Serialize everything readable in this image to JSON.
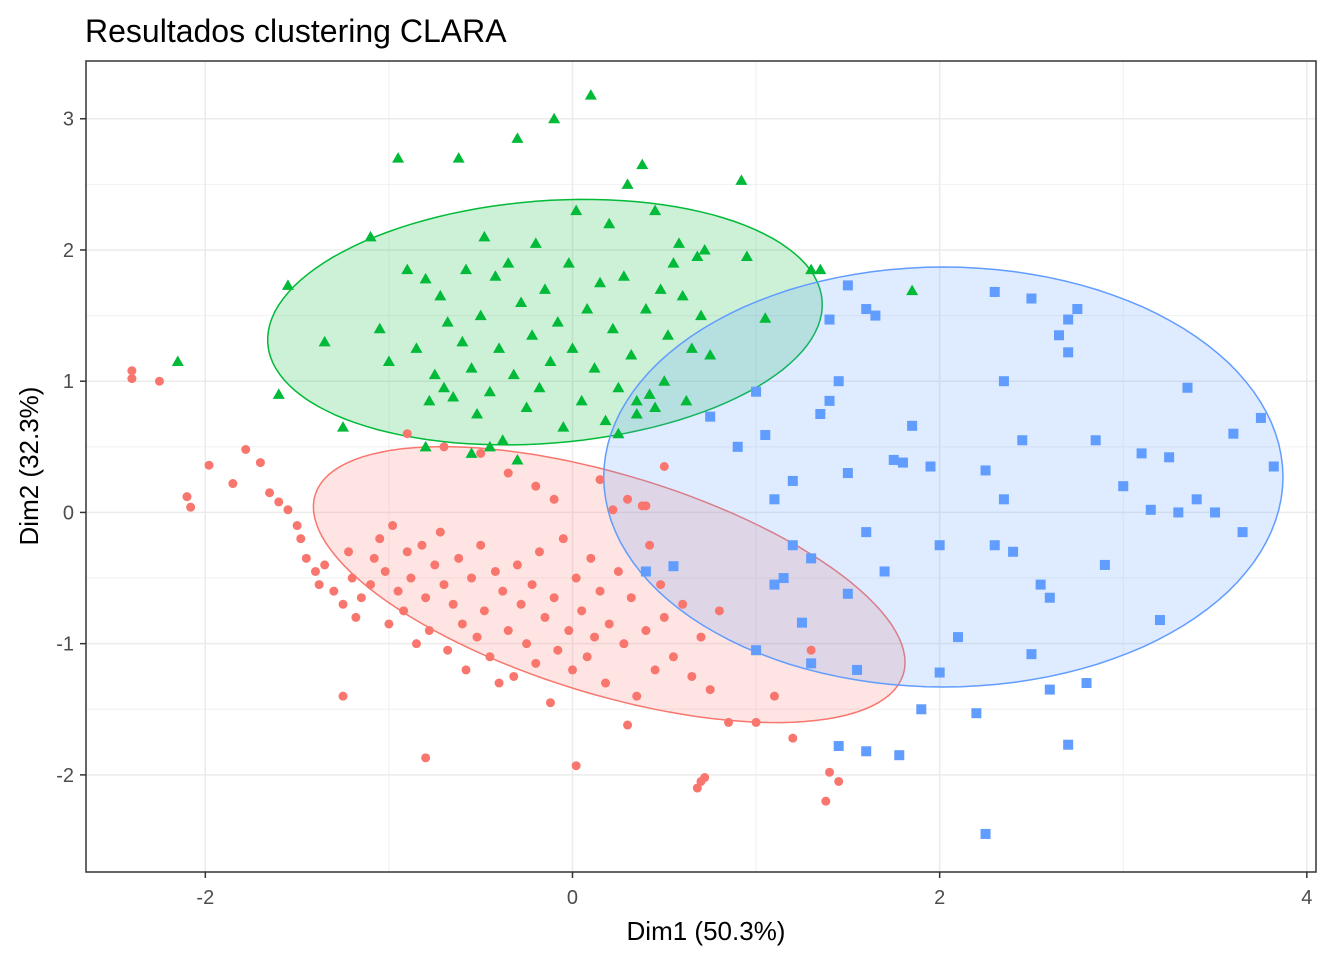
{
  "chart_data": {
    "type": "scatter",
    "title": "Resultados clustering CLARA",
    "xlabel": "Dim1 (50.3%)",
    "ylabel": "Dim2 (32.3%)",
    "xlim": [
      -2.65,
      4.05
    ],
    "ylim": [
      -2.74,
      3.44
    ],
    "x_ticks": [
      -2,
      0,
      2,
      4
    ],
    "y_ticks": [
      -2,
      -1,
      0,
      1,
      2,
      3
    ],
    "x_tick_labels": [
      "-2",
      "0",
      "2",
      "4"
    ],
    "y_tick_labels": [
      "-2",
      "-1",
      "0",
      "1",
      "2",
      "3"
    ],
    "grid": true,
    "legend": "none",
    "series": [
      {
        "color": "#F8766D",
        "fill": "#FDDCDA",
        "marker": "circle",
        "ellipse": {
          "cx": 0.2,
          "cy": -0.55,
          "rx": 1.75,
          "ry": 0.8,
          "angle_deg": -26
        },
        "points": [
          [
            -2.4,
            1.08
          ],
          [
            -2.4,
            1.02
          ],
          [
            -2.25,
            1.0
          ],
          [
            -2.1,
            0.12
          ],
          [
            -2.08,
            0.04
          ],
          [
            -1.98,
            0.36
          ],
          [
            -1.85,
            0.22
          ],
          [
            -1.78,
            0.48
          ],
          [
            -1.7,
            0.38
          ],
          [
            -1.65,
            0.15
          ],
          [
            -1.6,
            0.08
          ],
          [
            -1.55,
            0.02
          ],
          [
            -1.5,
            -0.1
          ],
          [
            -1.48,
            -0.2
          ],
          [
            -1.45,
            -0.35
          ],
          [
            -1.4,
            -0.45
          ],
          [
            -1.38,
            -0.55
          ],
          [
            -1.35,
            -0.4
          ],
          [
            -1.3,
            -0.6
          ],
          [
            -1.25,
            -0.7
          ],
          [
            -1.22,
            -0.3
          ],
          [
            -1.2,
            -0.5
          ],
          [
            -1.18,
            -0.8
          ],
          [
            -1.15,
            -0.65
          ],
          [
            -1.1,
            -0.55
          ],
          [
            -1.08,
            -0.35
          ],
          [
            -1.05,
            -0.2
          ],
          [
            -1.02,
            -0.45
          ],
          [
            -1.0,
            -0.85
          ],
          [
            -0.98,
            -0.1
          ],
          [
            -0.95,
            -0.6
          ],
          [
            -0.92,
            -0.75
          ],
          [
            -0.9,
            -0.3
          ],
          [
            -0.88,
            -0.5
          ],
          [
            -0.85,
            -1.0
          ],
          [
            -0.82,
            -0.25
          ],
          [
            -0.8,
            -0.65
          ],
          [
            -0.78,
            -0.9
          ],
          [
            -0.75,
            -0.4
          ],
          [
            -0.72,
            -0.15
          ],
          [
            -0.7,
            -0.55
          ],
          [
            -0.68,
            -1.05
          ],
          [
            -0.65,
            -0.7
          ],
          [
            -0.62,
            -0.35
          ],
          [
            -0.6,
            -0.85
          ],
          [
            -0.58,
            -1.2
          ],
          [
            -0.55,
            -0.5
          ],
          [
            -0.52,
            -0.95
          ],
          [
            -0.5,
            -0.25
          ],
          [
            -0.48,
            -0.75
          ],
          [
            -0.45,
            -1.1
          ],
          [
            -0.42,
            -0.45
          ],
          [
            -0.4,
            -1.3
          ],
          [
            -0.38,
            -0.6
          ],
          [
            -0.35,
            -0.9
          ],
          [
            -0.32,
            -1.25
          ],
          [
            -0.3,
            -0.4
          ],
          [
            -0.28,
            -0.7
          ],
          [
            -0.25,
            -1.0
          ],
          [
            -0.22,
            -0.55
          ],
          [
            -0.2,
            -1.15
          ],
          [
            -0.18,
            -0.3
          ],
          [
            -0.15,
            -0.8
          ],
          [
            -0.12,
            -1.45
          ],
          [
            -0.1,
            -0.65
          ],
          [
            -0.08,
            -1.05
          ],
          [
            -0.05,
            -0.2
          ],
          [
            -0.02,
            -0.9
          ],
          [
            0.0,
            -1.2
          ],
          [
            0.02,
            -0.5
          ],
          [
            0.05,
            -0.75
          ],
          [
            0.08,
            -1.1
          ],
          [
            0.1,
            -0.35
          ],
          [
            0.12,
            -0.95
          ],
          [
            0.15,
            -0.6
          ],
          [
            0.18,
            -1.3
          ],
          [
            0.2,
            -0.85
          ],
          [
            0.22,
            0.02
          ],
          [
            0.25,
            -0.45
          ],
          [
            0.28,
            -1.0
          ],
          [
            0.3,
            0.1
          ],
          [
            0.32,
            -0.65
          ],
          [
            0.35,
            -1.4
          ],
          [
            0.38,
            0.05
          ],
          [
            0.4,
            -0.9
          ],
          [
            0.42,
            -0.25
          ],
          [
            0.45,
            -1.2
          ],
          [
            0.48,
            -0.55
          ],
          [
            0.5,
            -0.8
          ],
          [
            0.55,
            -1.1
          ],
          [
            0.6,
            -0.7
          ],
          [
            0.65,
            -1.25
          ],
          [
            0.7,
            -0.95
          ],
          [
            0.75,
            -1.35
          ],
          [
            0.8,
            -0.75
          ],
          [
            0.85,
            -1.6
          ],
          [
            1.0,
            -1.6
          ],
          [
            1.1,
            -1.4
          ],
          [
            1.2,
            -1.72
          ],
          [
            1.3,
            -1.05
          ],
          [
            1.4,
            -1.98
          ],
          [
            1.45,
            -2.05
          ],
          [
            1.38,
            -2.2
          ],
          [
            -1.25,
            -1.4
          ],
          [
            -0.8,
            -1.87
          ],
          [
            0.02,
            -1.93
          ],
          [
            0.3,
            -1.62
          ],
          [
            0.7,
            -2.05
          ],
          [
            0.72,
            -2.02
          ],
          [
            0.68,
            -2.1
          ],
          [
            -0.9,
            0.6
          ],
          [
            -0.7,
            0.5
          ],
          [
            -0.5,
            0.45
          ],
          [
            -0.35,
            0.3
          ],
          [
            -0.2,
            0.2
          ],
          [
            -0.1,
            0.1
          ],
          [
            0.15,
            0.25
          ],
          [
            0.4,
            0.05
          ],
          [
            0.5,
            0.35
          ]
        ]
      },
      {
        "color": "#00BA38",
        "fill": "#D0F0D8",
        "marker": "triangle",
        "ellipse": {
          "cx": -0.15,
          "cy": 1.45,
          "rx": 1.52,
          "ry": 0.92,
          "angle_deg": 8
        },
        "points": [
          [
            -2.15,
            1.15
          ],
          [
            -1.6,
            0.9
          ],
          [
            -1.55,
            1.73
          ],
          [
            -1.35,
            1.3
          ],
          [
            -1.25,
            0.65
          ],
          [
            -1.1,
            2.1
          ],
          [
            -1.05,
            1.4
          ],
          [
            -1.0,
            1.15
          ],
          [
            -0.95,
            2.7
          ],
          [
            -0.9,
            1.85
          ],
          [
            -0.85,
            1.25
          ],
          [
            -0.8,
            1.78
          ],
          [
            -0.78,
            0.85
          ],
          [
            -0.75,
            1.05
          ],
          [
            -0.72,
            1.65
          ],
          [
            -0.7,
            0.95
          ],
          [
            -0.68,
            1.45
          ],
          [
            -0.65,
            0.88
          ],
          [
            -0.62,
            2.7
          ],
          [
            -0.6,
            1.3
          ],
          [
            -0.58,
            1.85
          ],
          [
            -0.55,
            1.1
          ],
          [
            -0.52,
            0.75
          ],
          [
            -0.5,
            1.5
          ],
          [
            -0.48,
            2.1
          ],
          [
            -0.45,
            0.92
          ],
          [
            -0.42,
            1.8
          ],
          [
            -0.4,
            1.25
          ],
          [
            -0.38,
            0.55
          ],
          [
            -0.35,
            1.9
          ],
          [
            -0.32,
            1.05
          ],
          [
            -0.3,
            2.85
          ],
          [
            -0.28,
            1.6
          ],
          [
            -0.25,
            0.8
          ],
          [
            -0.22,
            1.35
          ],
          [
            -0.2,
            2.05
          ],
          [
            -0.18,
            0.95
          ],
          [
            -0.15,
            1.7
          ],
          [
            -0.12,
            1.15
          ],
          [
            -0.1,
            3.0
          ],
          [
            -0.08,
            1.45
          ],
          [
            -0.05,
            0.65
          ],
          [
            -0.02,
            1.9
          ],
          [
            0.0,
            1.25
          ],
          [
            0.02,
            2.3
          ],
          [
            0.05,
            0.85
          ],
          [
            0.08,
            1.55
          ],
          [
            0.1,
            3.18
          ],
          [
            0.12,
            1.1
          ],
          [
            0.15,
            1.75
          ],
          [
            0.18,
            0.7
          ],
          [
            0.2,
            2.2
          ],
          [
            0.22,
            1.4
          ],
          [
            0.25,
            0.95
          ],
          [
            0.28,
            1.8
          ],
          [
            0.3,
            2.5
          ],
          [
            0.32,
            1.2
          ],
          [
            0.35,
            0.75
          ],
          [
            0.38,
            2.65
          ],
          [
            0.4,
            1.55
          ],
          [
            0.42,
            0.9
          ],
          [
            0.45,
            2.3
          ],
          [
            0.48,
            1.7
          ],
          [
            0.5,
            1.0
          ],
          [
            0.52,
            1.35
          ],
          [
            0.55,
            1.9
          ],
          [
            0.58,
            2.05
          ],
          [
            0.6,
            1.65
          ],
          [
            0.62,
            0.85
          ],
          [
            0.65,
            1.25
          ],
          [
            0.68,
            1.95
          ],
          [
            0.7,
            1.5
          ],
          [
            0.72,
            2.0
          ],
          [
            0.75,
            1.2
          ],
          [
            0.92,
            2.53
          ],
          [
            0.95,
            1.95
          ],
          [
            1.05,
            1.48
          ],
          [
            1.3,
            1.85
          ],
          [
            1.35,
            1.85
          ],
          [
            1.85,
            1.69
          ],
          [
            -0.55,
            0.45
          ],
          [
            -0.45,
            0.5
          ],
          [
            -0.3,
            0.4
          ],
          [
            -0.8,
            0.5
          ],
          [
            0.25,
            0.6
          ],
          [
            0.35,
            0.85
          ],
          [
            0.45,
            0.8
          ]
        ]
      },
      {
        "color": "#619CFF",
        "fill": "#DDE9FF",
        "marker": "square",
        "ellipse": {
          "cx": 2.02,
          "cy": 0.27,
          "rx": 1.85,
          "ry": 1.6,
          "angle_deg": 0
        },
        "points": [
          [
            0.4,
            -0.45
          ],
          [
            0.55,
            -0.41
          ],
          [
            0.75,
            0.73
          ],
          [
            0.9,
            0.5
          ],
          [
            1.0,
            0.92
          ],
          [
            1.05,
            0.59
          ],
          [
            1.1,
            -0.55
          ],
          [
            1.15,
            -0.5
          ],
          [
            1.2,
            0.24
          ],
          [
            1.25,
            -0.84
          ],
          [
            1.3,
            -0.35
          ],
          [
            1.35,
            0.75
          ],
          [
            1.4,
            0.85
          ],
          [
            1.45,
            1.0
          ],
          [
            1.5,
            -0.62
          ],
          [
            1.55,
            -1.2
          ],
          [
            1.6,
            1.55
          ],
          [
            1.65,
            1.5
          ],
          [
            1.7,
            -0.45
          ],
          [
            1.75,
            0.4
          ],
          [
            1.8,
            0.38
          ],
          [
            1.85,
            0.66
          ],
          [
            1.9,
            -1.5
          ],
          [
            1.95,
            0.35
          ],
          [
            2.0,
            -0.25
          ],
          [
            2.1,
            -0.95
          ],
          [
            2.2,
            -1.53
          ],
          [
            2.25,
            0.32
          ],
          [
            2.3,
            -0.25
          ],
          [
            2.35,
            0.1
          ],
          [
            2.4,
            -0.3
          ],
          [
            2.45,
            0.55
          ],
          [
            2.5,
            -1.08
          ],
          [
            2.55,
            -0.55
          ],
          [
            2.6,
            -0.65
          ],
          [
            2.65,
            1.35
          ],
          [
            2.7,
            1.22
          ],
          [
            2.75,
            1.55
          ],
          [
            2.8,
            -1.3
          ],
          [
            2.85,
            0.55
          ],
          [
            2.9,
            -0.4
          ],
          [
            3.0,
            0.2
          ],
          [
            3.1,
            0.45
          ],
          [
            3.15,
            0.02
          ],
          [
            3.2,
            -0.82
          ],
          [
            3.25,
            0.42
          ],
          [
            3.3,
            0.0
          ],
          [
            3.35,
            0.95
          ],
          [
            3.4,
            0.1
          ],
          [
            3.5,
            0.0
          ],
          [
            3.6,
            0.6
          ],
          [
            3.65,
            -0.15
          ],
          [
            3.75,
            0.72
          ],
          [
            3.82,
            0.35
          ],
          [
            1.4,
            1.47
          ],
          [
            1.5,
            1.73
          ],
          [
            2.3,
            1.68
          ],
          [
            2.5,
            1.63
          ],
          [
            2.7,
            1.47
          ],
          [
            2.35,
            1.0
          ],
          [
            1.5,
            0.3
          ],
          [
            1.6,
            -0.15
          ],
          [
            1.2,
            -0.25
          ],
          [
            1.0,
            -1.05
          ],
          [
            1.3,
            -1.15
          ],
          [
            1.6,
            -1.82
          ],
          [
            1.78,
            -1.85
          ],
          [
            1.45,
            -1.78
          ],
          [
            2.25,
            -2.45
          ],
          [
            2.7,
            -1.77
          ],
          [
            2.6,
            -1.35
          ],
          [
            2.0,
            -1.22
          ],
          [
            1.1,
            0.1
          ]
        ]
      }
    ]
  }
}
